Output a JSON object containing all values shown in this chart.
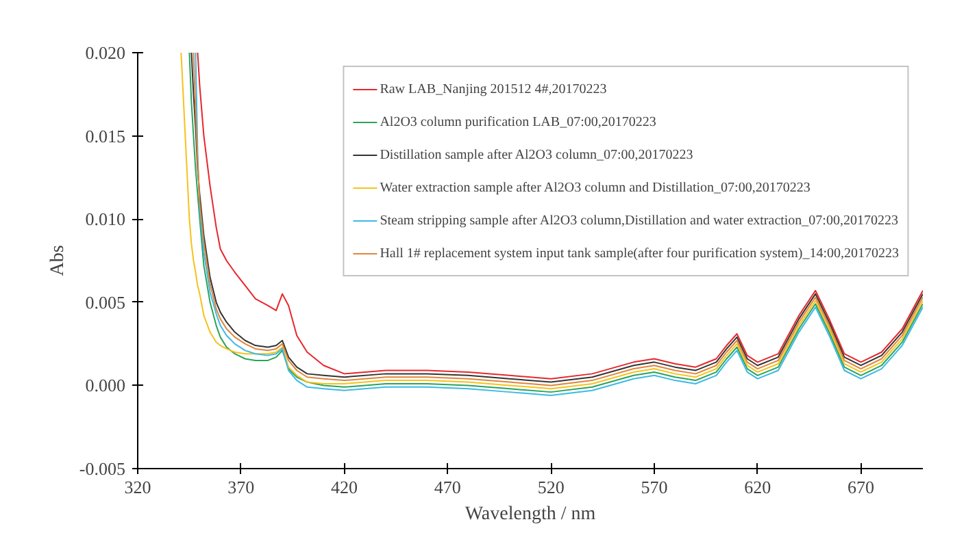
{
  "chart_data": {
    "type": "line",
    "xlabel": "Wavelength / nm",
    "ylabel": "Abs",
    "x": [
      341,
      345,
      346,
      347,
      348,
      349,
      350,
      352,
      355,
      358,
      360,
      363,
      367,
      372,
      377,
      383,
      387,
      390,
      393,
      397,
      402,
      410,
      420,
      440,
      460,
      480,
      500,
      520,
      540,
      560,
      570,
      580,
      590,
      600,
      605,
      610,
      615,
      620,
      630,
      640,
      648,
      655,
      662,
      670,
      680,
      690,
      700
    ],
    "series": [
      {
        "name": "Raw LAB_Nanjing 201512 4#,20170223",
        "color": "#e8262b",
        "values": [
          null,
          null,
          null,
          null,
          null,
          0.02,
          0.018,
          0.015,
          0.012,
          0.0095,
          0.0082,
          0.0075,
          0.0068,
          0.006,
          0.0052,
          0.0048,
          0.0045,
          0.0055,
          0.0048,
          0.003,
          0.002,
          0.0012,
          0.0007,
          0.0009,
          0.0009,
          0.0008,
          0.0006,
          0.0004,
          0.0007,
          0.0014,
          0.0016,
          0.0013,
          0.0011,
          0.0016,
          0.0024,
          0.0031,
          0.0018,
          0.0014,
          0.0019,
          0.0042,
          0.0057,
          0.0039,
          0.0019,
          0.0014,
          0.002,
          0.0034,
          0.0057
        ]
      },
      {
        "name": "Al2O3 column purification LAB_07:00,20170223",
        "color": "#2aa35a",
        "values": [
          null,
          0.02,
          0.017,
          0.015,
          0.013,
          0.0115,
          0.01,
          0.0072,
          0.005,
          0.0036,
          0.0029,
          0.0023,
          0.0019,
          0.0016,
          0.0015,
          0.0015,
          0.0017,
          0.0021,
          0.001,
          0.0005,
          0.0002,
          0.0,
          -0.0001,
          0.0001,
          0.0001,
          0.0,
          -0.0002,
          -0.0004,
          -0.0001,
          0.0006,
          0.0008,
          0.0005,
          0.0003,
          0.0008,
          0.0016,
          0.0023,
          0.001,
          0.0006,
          0.0011,
          0.0034,
          0.0049,
          0.0031,
          0.0011,
          0.0006,
          0.0012,
          0.0026,
          0.0049
        ]
      },
      {
        "name": "Distillation sample after Al2O3 column_07:00,20170223",
        "color": "#333333",
        "values": [
          null,
          null,
          0.02,
          0.0175,
          0.0155,
          0.013,
          0.0115,
          0.009,
          0.0065,
          0.005,
          0.0044,
          0.0038,
          0.0032,
          0.0027,
          0.0024,
          0.0023,
          0.0024,
          0.0027,
          0.0017,
          0.0011,
          0.0007,
          0.0006,
          0.0005,
          0.0007,
          0.0007,
          0.0006,
          0.0004,
          0.0002,
          0.0005,
          0.0012,
          0.0014,
          0.0011,
          0.0009,
          0.0014,
          0.0022,
          0.0029,
          0.0016,
          0.0012,
          0.0017,
          0.004,
          0.0055,
          0.0037,
          0.0017,
          0.0012,
          0.0018,
          0.0032,
          0.0055
        ]
      },
      {
        "name": "Water extraction sample after Al2O3 column and Distillation_07:00,20170223",
        "color": "#f5c21b",
        "values": [
          0.02,
          0.01,
          0.0085,
          0.0075,
          0.0068,
          0.006,
          0.0055,
          0.0042,
          0.0032,
          0.0026,
          0.0024,
          0.0022,
          0.002,
          0.0019,
          0.0019,
          0.0019,
          0.002,
          0.0023,
          0.0011,
          0.0006,
          0.0002,
          0.0001,
          0.0001,
          0.0003,
          0.0003,
          0.0002,
          0.0,
          -0.0002,
          0.0001,
          0.0008,
          0.001,
          0.0007,
          0.0005,
          0.001,
          0.0018,
          0.0025,
          0.0012,
          0.0008,
          0.0013,
          0.0036,
          0.0051,
          0.0033,
          0.0013,
          0.0008,
          0.0014,
          0.0028,
          0.0051
        ]
      },
      {
        "name": "Steam stripping sample after Al2O3 column,Distillation and water extraction_07:00,20170223",
        "color": "#3cb9e6",
        "values": [
          null,
          null,
          null,
          null,
          0.02,
          0.014,
          0.0105,
          0.008,
          0.0056,
          0.0043,
          0.0036,
          0.003,
          0.0025,
          0.0021,
          0.0019,
          0.0018,
          0.0019,
          0.0022,
          0.0009,
          0.0003,
          -0.0001,
          -0.0002,
          -0.0003,
          -0.0001,
          -0.0001,
          -0.0002,
          -0.0004,
          -0.0006,
          -0.0003,
          0.0004,
          0.0006,
          0.0003,
          0.0001,
          0.0006,
          0.0014,
          0.0021,
          0.0008,
          0.0004,
          0.0009,
          0.0032,
          0.0047,
          0.0029,
          0.0009,
          0.0004,
          0.001,
          0.0024,
          0.0047
        ]
      },
      {
        "name": "Hall 1# replacement system input tank sample(after four purification system)_14:00,20170223",
        "color": "#e0843a",
        "values": [
          null,
          null,
          null,
          0.02,
          0.0165,
          0.0135,
          0.011,
          0.0086,
          0.0061,
          0.0046,
          0.004,
          0.0034,
          0.0029,
          0.0025,
          0.0022,
          0.0021,
          0.0022,
          0.0025,
          0.0015,
          0.0009,
          0.0005,
          0.0004,
          0.0003,
          0.0005,
          0.0005,
          0.0004,
          0.0002,
          0.0,
          0.0003,
          0.001,
          0.0012,
          0.0009,
          0.0007,
          0.0012,
          0.002,
          0.0027,
          0.0014,
          0.001,
          0.0015,
          0.0038,
          0.0053,
          0.0035,
          0.0015,
          0.001,
          0.0016,
          0.003,
          0.0053
        ]
      }
    ],
    "xlim": [
      320,
      700
    ],
    "xticks": [
      320,
      370,
      420,
      470,
      520,
      570,
      620,
      670
    ],
    "ylim": [
      -0.005,
      0.02
    ],
    "yticks": [
      {
        "value": -0.005,
        "label": "-0.005"
      },
      {
        "value": 0,
        "label": "0.000"
      },
      {
        "value": 0.005,
        "label": "0.005"
      },
      {
        "value": 0.01,
        "label": "0.010"
      },
      {
        "value": 0.015,
        "label": "0.015"
      },
      {
        "value": 0.02,
        "label": "0.020"
      }
    ],
    "grid": false,
    "legend": "top right",
    "marker": "none",
    "line_style": "solid"
  }
}
